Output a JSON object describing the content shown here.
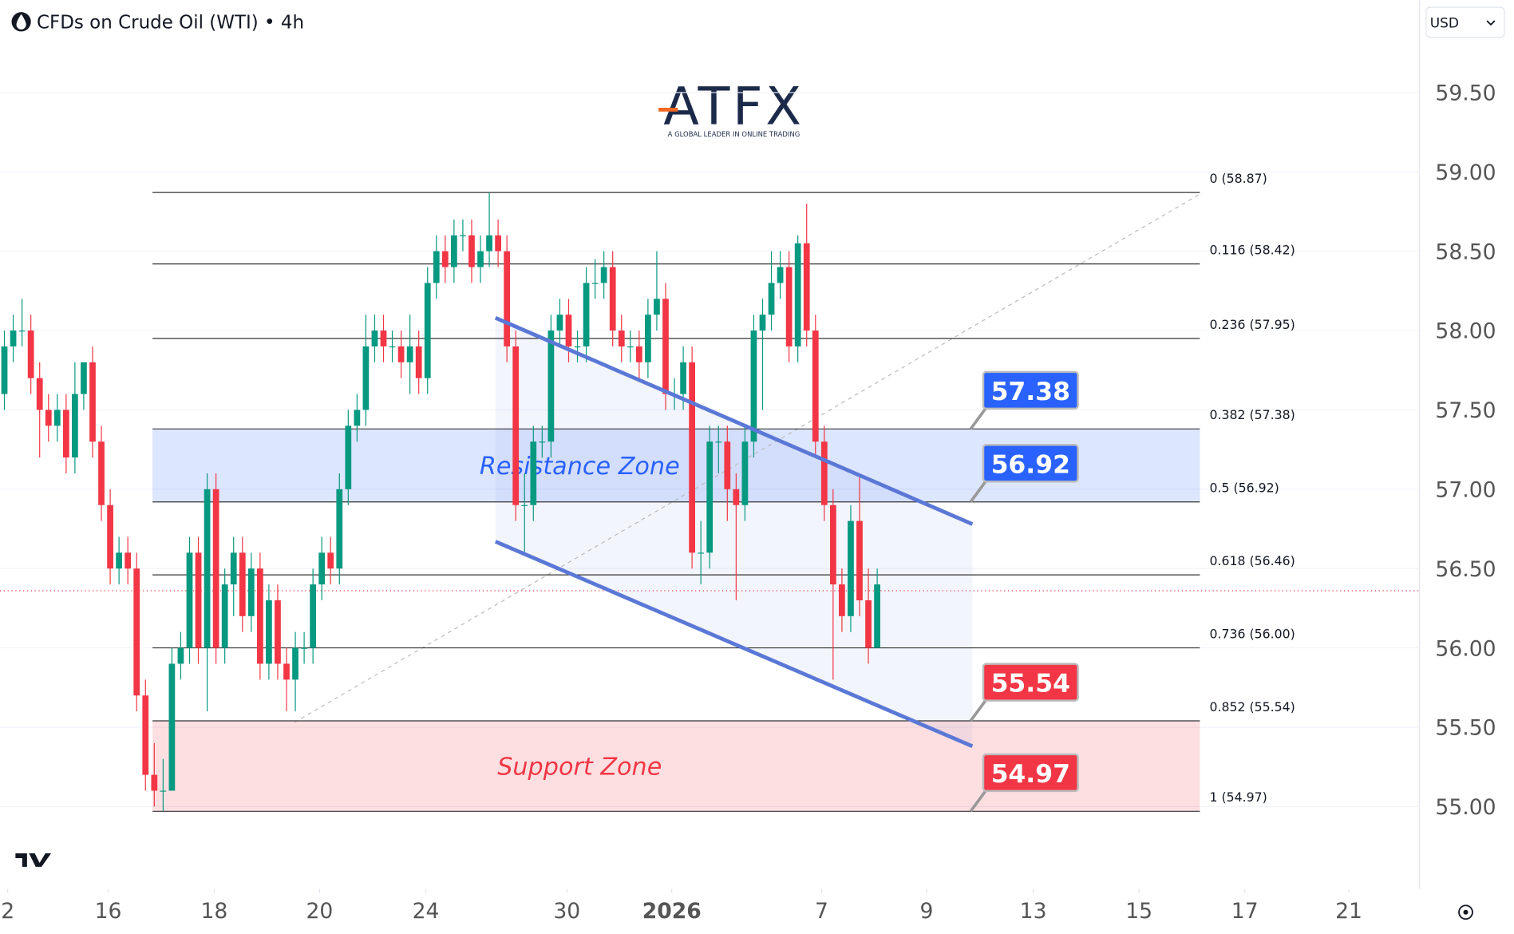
{
  "header": {
    "symbol": "CFDs on Crude Oil (WTI) • 4h",
    "currency": "USD"
  },
  "logo": {
    "name": "ATFX",
    "tagline": "A GLOBAL LEADER IN ONLINE TRADING"
  },
  "chart_data": {
    "type": "candlestick",
    "up_color": "#089981",
    "down_color": "#f23645",
    "xlim": [
      -0.5,
      160.5
    ],
    "xticks": [
      {
        "value": 0.38,
        "label": "2"
      },
      {
        "value": 11.77,
        "label": "16"
      },
      {
        "value": 23.8,
        "label": "18"
      },
      {
        "value": 35.75,
        "label": "20"
      },
      {
        "value": 47.8,
        "label": "24"
      },
      {
        "value": 63.8,
        "label": "30"
      },
      {
        "value": 75.7,
        "label": "2026"
      },
      {
        "value": 92.7,
        "label": "7"
      },
      {
        "value": 104.6,
        "label": "9"
      },
      {
        "value": 116.7,
        "label": "13"
      },
      {
        "value": 128.7,
        "label": "15"
      },
      {
        "value": 140.7,
        "label": "17"
      },
      {
        "value": 152.5,
        "label": "21"
      }
    ],
    "ylim": [
      54.48,
      60.08
    ],
    "yticks": [
      {
        "value": 55,
        "label": "55.00"
      },
      {
        "value": 55.5,
        "label": "55.50"
      },
      {
        "value": 56,
        "label": "56.00"
      },
      {
        "value": 56.5,
        "label": "56.50"
      },
      {
        "value": 57,
        "label": "57.00"
      },
      {
        "value": 57.5,
        "label": "57.50"
      },
      {
        "value": 58,
        "label": "58.00"
      },
      {
        "value": 58.5,
        "label": "58.50"
      },
      {
        "value": 59,
        "label": "59.00"
      },
      {
        "value": 59.5,
        "label": "59.50"
      }
    ],
    "grid": true,
    "open": [
      57.6,
      57.9,
      58.0,
      58.0,
      57.7,
      57.5,
      57.4,
      57.5,
      57.2,
      57.6,
      57.8,
      57.3,
      56.9,
      56.5,
      56.6,
      56.5,
      55.7,
      55.2,
      55.1,
      55.1,
      55.9,
      56.0,
      56.6,
      56.0,
      57.0,
      56.0,
      56.4,
      56.6,
      56.2,
      56.5,
      55.9,
      56.3,
      55.9,
      55.8,
      56.0,
      56.0,
      56.4,
      56.6,
      56.5,
      57.0,
      57.4,
      57.5,
      57.9,
      58.0,
      57.9,
      57.9,
      57.8,
      57.9,
      57.7,
      58.3,
      58.5,
      58.4,
      58.6,
      58.6,
      58.4,
      58.5,
      58.6,
      58.5,
      57.9,
      56.9,
      56.9,
      57.3,
      57.3,
      58.0,
      58.1,
      57.9,
      57.9,
      58.3,
      58.3,
      58.4,
      58.0,
      57.9,
      57.9,
      57.8,
      58.1,
      58.2,
      57.6,
      57.6,
      57.8,
      56.6,
      56.6,
      57.3,
      57.3,
      57.0,
      56.9,
      57.3,
      58.0,
      58.1,
      58.3,
      58.4,
      57.9,
      58.55,
      58.0,
      57.3,
      56.9,
      56.4,
      56.2,
      56.8,
      56.3,
      56.0
    ],
    "high": [
      58.0,
      58.1,
      58.2,
      58.1,
      57.8,
      57.6,
      57.6,
      57.6,
      57.8,
      57.8,
      57.9,
      57.4,
      57.0,
      56.7,
      56.7,
      56.6,
      55.8,
      55.4,
      55.3,
      56.0,
      56.1,
      56.7,
      56.7,
      57.1,
      57.1,
      56.5,
      56.7,
      56.7,
      56.6,
      56.6,
      56.4,
      56.4,
      56.0,
      56.1,
      56.1,
      56.5,
      56.7,
      56.7,
      57.1,
      57.5,
      57.6,
      58.1,
      58.1,
      58.1,
      58.0,
      58.0,
      58.1,
      58.0,
      58.4,
      58.6,
      58.6,
      58.7,
      58.7,
      58.7,
      58.6,
      58.87,
      58.7,
      58.6,
      58.0,
      57.1,
      57.4,
      57.4,
      58.1,
      58.2,
      58.2,
      58.0,
      58.4,
      58.45,
      58.5,
      58.5,
      58.1,
      58.0,
      58.0,
      58.2,
      58.5,
      58.3,
      57.7,
      57.9,
      57.9,
      56.8,
      57.4,
      57.4,
      57.4,
      57.1,
      57.4,
      58.1,
      58.2,
      58.5,
      58.5,
      58.5,
      58.6,
      58.8,
      58.1,
      57.4,
      57.0,
      56.5,
      56.9,
      57.1,
      56.5,
      56.5
    ],
    "low": [
      57.5,
      57.8,
      57.9,
      57.6,
      57.2,
      57.3,
      57.3,
      57.1,
      57.1,
      57.5,
      57.2,
      56.8,
      56.4,
      56.4,
      56.4,
      55.6,
      55.1,
      55.0,
      54.97,
      55.1,
      55.8,
      55.9,
      55.9,
      55.6,
      55.9,
      55.9,
      56.2,
      56.1,
      56.1,
      55.8,
      55.8,
      55.8,
      55.6,
      55.6,
      55.9,
      55.9,
      56.3,
      56.4,
      56.4,
      56.9,
      57.3,
      57.4,
      57.8,
      57.8,
      57.8,
      57.7,
      57.6,
      57.6,
      57.6,
      58.2,
      58.3,
      58.3,
      58.5,
      58.3,
      58.3,
      58.4,
      58.4,
      57.8,
      56.8,
      56.6,
      56.8,
      57.2,
      57.2,
      57.9,
      57.8,
      57.8,
      57.8,
      58.2,
      58.2,
      57.9,
      57.8,
      57.8,
      57.7,
      57.7,
      58.0,
      57.5,
      57.5,
      57.5,
      56.5,
      56.4,
      56.5,
      57.1,
      56.8,
      56.3,
      56.8,
      57.2,
      57.5,
      58.0,
      58.2,
      57.8,
      57.8,
      57.9,
      57.2,
      56.8,
      55.8,
      56.1,
      56.1,
      56.2,
      55.9,
      56.0
    ],
    "close": [
      57.9,
      58.0,
      58.0,
      57.7,
      57.5,
      57.4,
      57.5,
      57.2,
      57.6,
      57.8,
      57.3,
      56.9,
      56.5,
      56.6,
      56.5,
      55.7,
      55.2,
      55.1,
      55.1,
      55.9,
      56.0,
      56.6,
      56.0,
      57.0,
      56.0,
      56.4,
      56.6,
      56.2,
      56.5,
      55.9,
      56.3,
      55.9,
      55.8,
      56.0,
      56.0,
      56.4,
      56.6,
      56.5,
      57.0,
      57.4,
      57.5,
      57.9,
      58.0,
      57.9,
      57.9,
      57.8,
      57.9,
      57.7,
      58.3,
      58.5,
      58.4,
      58.6,
      58.6,
      58.4,
      58.5,
      58.6,
      58.5,
      57.9,
      56.9,
      56.9,
      57.3,
      57.3,
      58.0,
      58.1,
      57.9,
      57.9,
      58.3,
      58.3,
      58.4,
      58.0,
      57.9,
      57.9,
      57.8,
      58.1,
      58.2,
      57.6,
      57.6,
      57.8,
      56.6,
      56.6,
      57.3,
      57.3,
      57.0,
      56.9,
      57.3,
      58.0,
      58.1,
      58.3,
      58.4,
      57.9,
      58.55,
      58.0,
      57.3,
      56.9,
      56.4,
      56.2,
      56.8,
      56.3,
      56.0,
      56.4
    ],
    "last_price": 56.36,
    "fib_x": [
      16.8,
      135.6
    ],
    "fib_levels": [
      {
        "label": "0 (58.87)",
        "value": 58.87
      },
      {
        "label": "0.116 (58.42)",
        "value": 58.42
      },
      {
        "label": "0.236 (57.95)",
        "value": 57.95
      },
      {
        "label": "0.382 (57.38)",
        "value": 57.38
      },
      {
        "label": "0.5 (56.92)",
        "value": 56.92
      },
      {
        "label": "0.618 (56.46)",
        "value": 56.46
      },
      {
        "label": "0.736 (56.00)",
        "value": 56.0
      },
      {
        "label": "0.852 (55.54)",
        "value": 55.54
      },
      {
        "label": "1 (54.97)",
        "value": 54.97
      }
    ],
    "trend_line": [
      [
        32.9,
        55.53
      ],
      [
        135.6,
        58.86
      ]
    ],
    "zones": [
      {
        "name": "Resistance Zone",
        "from": 56.92,
        "to": 57.38,
        "color": "#2962ff"
      },
      {
        "name": "Support Zone",
        "from": 54.97,
        "to": 55.54,
        "color": "#f23645"
      }
    ],
    "channel": {
      "x": [
        55.7,
        109.8
      ],
      "upper": [
        58.08,
        56.78
      ],
      "lower": [
        56.67,
        55.38
      ],
      "color": "#5b78d6"
    },
    "tag_x": [
      109.6,
      116.4
    ],
    "price_tags": [
      {
        "value": 57.38,
        "color": "#2962ff"
      },
      {
        "value": 56.92,
        "color": "#2962ff"
      },
      {
        "value": 55.54,
        "color": "#f23645"
      },
      {
        "value": 54.97,
        "color": "#f23645"
      }
    ]
  }
}
